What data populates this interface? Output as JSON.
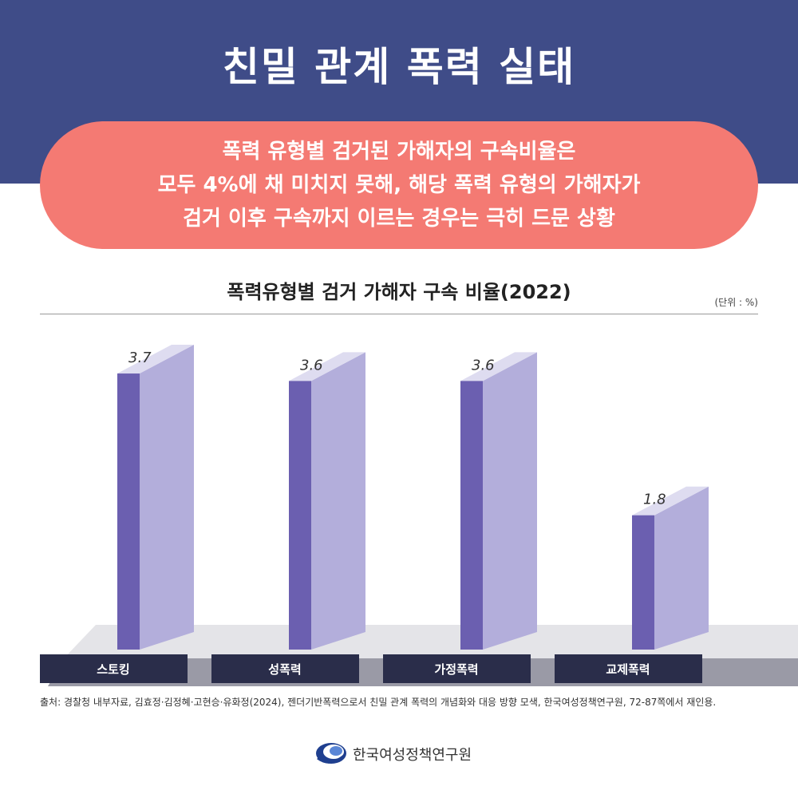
{
  "header": {
    "title": "친밀 관계 폭력 실태"
  },
  "callout": {
    "lines": [
      "폭력 유형별 검거된 가해자의 구속비율은",
      "모두 4%에 채 미치지 못해, 해당 폭력 유형의 가해자가",
      "검거 이후 구속까지 이르는 경우는 극히 드문 상황"
    ]
  },
  "chart_data": {
    "type": "bar",
    "title": "폭력유형별 검거 가해자 구속 비율(2022)",
    "unit_label": "(단위 : %)",
    "categories": [
      "스토킹",
      "성폭력",
      "가정폭력",
      "교제폭력"
    ],
    "values": [
      3.7,
      3.6,
      3.6,
      1.8
    ],
    "value_labels": [
      "3.7",
      "3.6",
      "3.6",
      "1.8"
    ],
    "ylim": [
      0,
      4
    ],
    "colors": {
      "bar_front": "#6b5fb0",
      "bar_side": "#b3aedb",
      "bar_top": "#dedcf0",
      "label_bg": "#2a2d4a",
      "platform": "#9a9aa6",
      "platform_top": "#e4e4e8"
    }
  },
  "source": "출처: 경찰청 내부자료, 김효정·김정혜·고현승·유화정(2024), 젠더기반폭력으로서 친밀 관계 폭력의 개념화와 대응 방향 모색, 한국여성정책연구원, 72-87쪽에서 재인용.",
  "logo": {
    "text": "한국여성정책연구원",
    "icon": "kwdi-logo-icon"
  },
  "colors": {
    "header_bg": "#3f4c88",
    "callout_bg": "#f47a73"
  }
}
